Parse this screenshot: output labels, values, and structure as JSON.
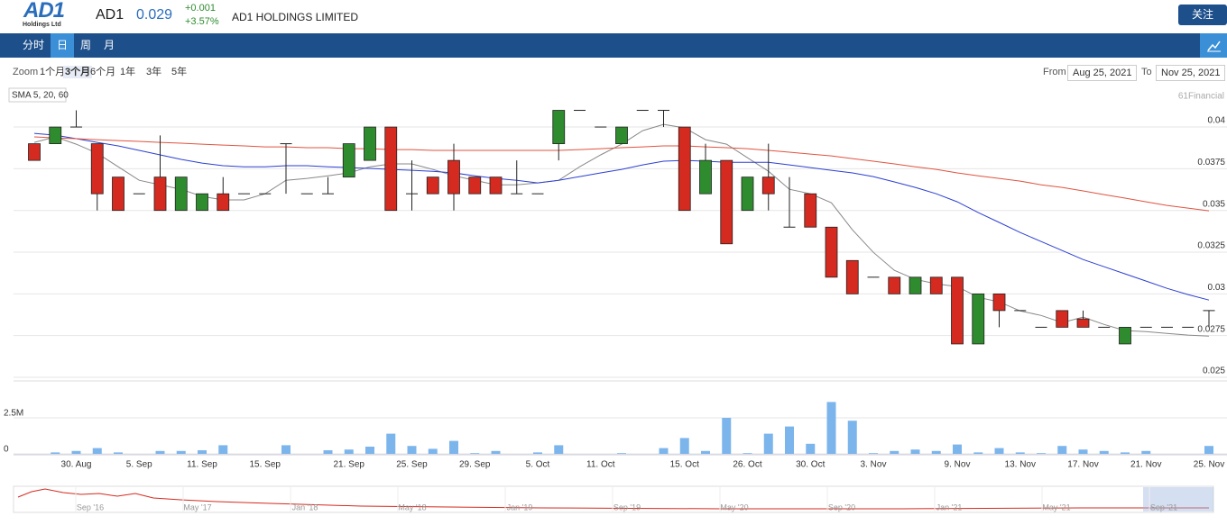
{
  "header": {
    "logo": "AD1",
    "logo_sub": "Holdings Ltd",
    "ticker": "AD1",
    "price": "0.029",
    "change": "+0.001",
    "change_pct": "+3.57%",
    "company": "AD1 HOLDINGS LIMITED",
    "follow": "关注"
  },
  "tabs": [
    "分时",
    "日",
    "周",
    "月"
  ],
  "toolbar": {
    "zoom_label": "Zoom",
    "zoom": [
      "1个月",
      "3个月",
      "6个月",
      "1年",
      "3年",
      "5年"
    ],
    "from_label": "From",
    "from": "Aug 25, 2021",
    "to_label": "To",
    "to": "Nov 25, 2021"
  },
  "chart_data": {
    "type": "candlestick",
    "sma_label": "SMA 5, 20, 60",
    "credit": "61Financial",
    "categories": [
      null,
      null,
      "30. Aug",
      null,
      null,
      "5. Sep",
      null,
      null,
      "11. Sep",
      null,
      null,
      "15. Sep",
      null,
      null,
      null,
      "21. Sep",
      null,
      null,
      "25. Sep",
      null,
      null,
      "29. Sep",
      null,
      null,
      "5. Oct",
      null,
      null,
      "11. Oct",
      null,
      null,
      null,
      "15. Oct",
      null,
      null,
      "26. Oct",
      null,
      null,
      "30. Oct",
      null,
      null,
      "3. Nov",
      null,
      null,
      null,
      "9. Nov",
      null,
      null,
      "13. Nov",
      null,
      null,
      "17. Nov",
      null,
      null,
      "21. Nov",
      null,
      null,
      "25. Nov"
    ],
    "open": [
      0.039,
      0.039,
      0.04,
      0.039,
      0.037,
      0.036,
      0.037,
      0.035,
      0.035,
      0.036,
      0.036,
      0.036,
      0.039,
      0.036,
      0.036,
      0.037,
      0.038,
      0.04,
      0.036,
      0.037,
      0.038,
      0.037,
      0.037,
      0.036,
      0.036,
      0.039,
      0.041,
      0.04,
      0.039,
      0.041,
      0.041,
      0.04,
      0.036,
      0.038,
      0.035,
      0.037,
      0.034,
      0.036,
      0.034,
      0.032,
      0.031,
      0.031,
      0.03,
      0.031,
      0.031,
      0.027,
      0.03,
      0.029,
      0.028,
      0.029,
      0.0285,
      0.028,
      0.027,
      0.028,
      0.028,
      0.028,
      0.029
    ],
    "high": [
      0.039,
      0.04,
      0.041,
      0.039,
      0.037,
      0.036,
      0.0395,
      0.037,
      0.036,
      0.037,
      0.036,
      0.036,
      0.039,
      0.036,
      0.037,
      0.039,
      0.04,
      0.04,
      0.038,
      0.037,
      0.039,
      0.037,
      0.037,
      0.038,
      0.036,
      0.041,
      0.041,
      0.04,
      0.04,
      0.041,
      0.041,
      0.04,
      0.039,
      0.038,
      0.037,
      0.039,
      0.037,
      0.036,
      0.034,
      0.032,
      0.031,
      0.031,
      0.031,
      0.031,
      0.031,
      0.03,
      0.03,
      0.029,
      0.028,
      0.029,
      0.029,
      0.028,
      0.028,
      0.028,
      0.028,
      0.028,
      0.029
    ],
    "low": [
      0.038,
      0.039,
      0.04,
      0.035,
      0.035,
      0.036,
      0.035,
      0.035,
      0.035,
      0.035,
      0.036,
      0.036,
      0.036,
      0.036,
      0.036,
      0.037,
      0.038,
      0.035,
      0.035,
      0.036,
      0.035,
      0.036,
      0.036,
      0.036,
      0.036,
      0.038,
      0.041,
      0.04,
      0.039,
      0.041,
      0.04,
      0.035,
      0.036,
      0.033,
      0.035,
      0.035,
      0.034,
      0.034,
      0.031,
      0.03,
      0.031,
      0.03,
      0.03,
      0.03,
      0.027,
      0.027,
      0.028,
      0.029,
      0.028,
      0.028,
      0.028,
      0.028,
      0.027,
      0.028,
      0.028,
      0.028,
      0.028
    ],
    "close": [
      0.038,
      0.04,
      0.04,
      0.036,
      0.035,
      0.036,
      0.035,
      0.037,
      0.036,
      0.035,
      0.036,
      0.036,
      0.039,
      0.036,
      0.036,
      0.039,
      0.04,
      0.035,
      0.036,
      0.036,
      0.036,
      0.036,
      0.036,
      0.036,
      0.036,
      0.041,
      0.041,
      0.04,
      0.04,
      0.041,
      0.041,
      0.035,
      0.038,
      0.033,
      0.037,
      0.036,
      0.034,
      0.034,
      0.031,
      0.03,
      0.031,
      0.03,
      0.031,
      0.03,
      0.027,
      0.03,
      0.029,
      0.029,
      0.028,
      0.028,
      0.028,
      0.028,
      0.028,
      0.028,
      0.028,
      0.028,
      0.029
    ],
    "up_color": "#2e8b2e",
    "down_color": "#d42a1f",
    "sma": [
      {
        "color": "#888888",
        "values": [
          0.03908,
          0.03941,
          0.03897,
          0.03843,
          0.03762,
          0.03681,
          0.03654,
          0.03627,
          0.03584,
          0.03563,
          0.03563,
          0.036,
          0.03681,
          0.03692,
          0.03708,
          0.03725,
          0.03762,
          0.03779,
          0.03779,
          0.03746,
          0.03708,
          0.03681,
          0.03654,
          0.03654,
          0.03665,
          0.03681,
          0.03762,
          0.03833,
          0.03897,
          0.03978,
          0.04016,
          0.03995,
          0.03924,
          0.03897,
          0.03816,
          0.03735,
          0.03627,
          0.036,
          0.03546,
          0.03384,
          0.03249,
          0.03141,
          0.03087,
          0.0306,
          0.03044,
          0.02979,
          0.02952,
          0.02898,
          0.02871,
          0.02828,
          0.02861,
          0.02817,
          0.0278,
          0.02774,
          0.02763,
          0.02753,
          0.02747
        ]
      },
      {
        "color": "#2b3fd1",
        "values": [
          0.03962,
          0.03951,
          0.0393,
          0.03908,
          0.03887,
          0.0386,
          0.03833,
          0.03806,
          0.03784,
          0.03768,
          0.03762,
          0.03762,
          0.03768,
          0.03768,
          0.03762,
          0.03757,
          0.03752,
          0.03746,
          0.03741,
          0.03735,
          0.03725,
          0.03708,
          0.03692,
          0.03681,
          0.03665,
          0.03681,
          0.03703,
          0.03725,
          0.03746,
          0.03773,
          0.03795,
          0.038,
          0.03795,
          0.03789,
          0.03789,
          0.03789,
          0.03773,
          0.03757,
          0.03741,
          0.03725,
          0.03703,
          0.03671,
          0.03638,
          0.036,
          0.03552,
          0.03487,
          0.03428,
          0.03368,
          0.03314,
          0.0326,
          0.03206,
          0.03163,
          0.0312,
          0.03077,
          0.03033,
          0.02996,
          0.02963
        ]
      },
      {
        "color": "#e0533f",
        "values": [
          0.03941,
          0.03935,
          0.0393,
          0.03924,
          0.03919,
          0.03914,
          0.03908,
          0.03903,
          0.03897,
          0.03892,
          0.03887,
          0.03881,
          0.03881,
          0.03876,
          0.03876,
          0.0387,
          0.0387,
          0.03865,
          0.03865,
          0.0386,
          0.0386,
          0.0386,
          0.0386,
          0.0386,
          0.0386,
          0.0386,
          0.03865,
          0.0387,
          0.03876,
          0.03881,
          0.03887,
          0.03887,
          0.03881,
          0.03876,
          0.0387,
          0.0386,
          0.03849,
          0.03838,
          0.03827,
          0.03811,
          0.03795,
          0.03779,
          0.03762,
          0.03746,
          0.03725,
          0.03708,
          0.03692,
          0.03676,
          0.03654,
          0.03638,
          0.03617,
          0.03595,
          0.03574,
          0.03552,
          0.0353,
          0.03514,
          0.03498
        ]
      }
    ],
    "ylim": [
      0.025,
      0.042
    ],
    "yticks": [
      0.025,
      0.0275,
      0.03,
      0.0325,
      0.035,
      0.0375,
      0.04
    ],
    "grid": true,
    "volume": {
      "color": "#7cb5ec",
      "values": [
        0,
        100000,
        200000,
        400000,
        100000,
        0,
        200000,
        200000,
        250000,
        600000,
        0,
        0,
        600000,
        0,
        250000,
        300000,
        500000,
        1400000,
        550000,
        350000,
        900000,
        50000,
        200000,
        0,
        100000,
        600000,
        0,
        0,
        50000,
        0,
        400000,
        1100000,
        200000,
        2500000,
        50000,
        1400000,
        1900000,
        700000,
        3600000,
        2300000,
        50000,
        200000,
        300000,
        200000,
        650000,
        100000,
        400000,
        100000,
        50000,
        550000,
        300000,
        200000,
        100000,
        200000,
        0,
        0,
        550000
      ],
      "ylim": [
        0,
        5000000
      ],
      "yticks": [
        0,
        {
          "value": 2500000,
          "label": "2.5M"
        }
      ]
    },
    "navigator_labels": [
      "Sep '16",
      "May '17",
      "Jan '18",
      "May '18",
      "Jan '19",
      "Sep '19",
      "May '20",
      "Sep '20",
      "Jan '21",
      "May '21",
      "Sep '21"
    ]
  }
}
